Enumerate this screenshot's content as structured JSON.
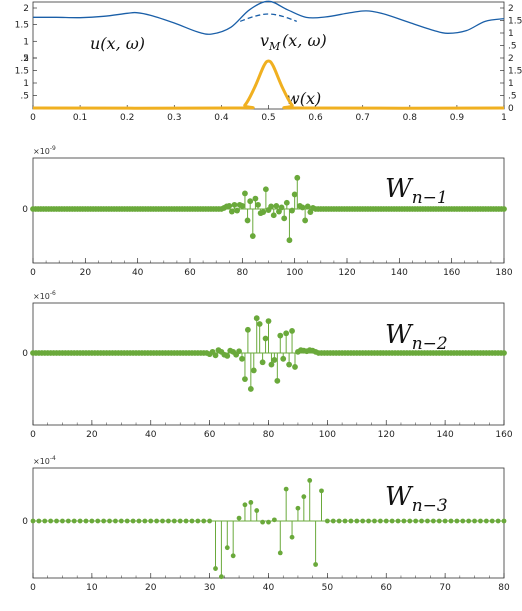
{
  "chart_data": [
    {
      "type": "line",
      "xlim": [
        0,
        1
      ],
      "ylim": [
        0,
        2
      ],
      "x_ticks": [
        "0",
        "0.1",
        "0.2",
        "0.3",
        "0.4",
        "0.5",
        "0.6",
        "0.7",
        "0.8",
        "0.9",
        "1"
      ],
      "left_y_ticks": [
        ".5",
        "1",
        "1.5",
        "2",
        ".5",
        "1",
        "1.5",
        "2"
      ],
      "right_y_ticks": [
        "0",
        ".5",
        "1",
        "1.5",
        "2",
        ".5",
        "1",
        "1.5",
        "2"
      ],
      "bottom_ticks": [
        "0",
        ".5"
      ],
      "series": [
        {
          "name": "u(x,ω)",
          "color": "#1a5fa8",
          "x": [
            0,
            0.05,
            0.1,
            0.15,
            0.2,
            0.22,
            0.25,
            0.3,
            0.35,
            0.38,
            0.42,
            0.46,
            0.5,
            0.54,
            0.58,
            0.62,
            0.67,
            0.7,
            0.72,
            0.75,
            0.8,
            0.85,
            0.88,
            0.92,
            0.96,
            1
          ],
          "y": [
            1.72,
            1.72,
            1.71,
            1.75,
            1.84,
            1.86,
            1.78,
            1.55,
            1.28,
            1.22,
            1.42,
            1.95,
            2.2,
            1.95,
            1.72,
            1.73,
            1.85,
            1.91,
            1.9,
            1.8,
            1.56,
            1.33,
            1.24,
            1.32,
            1.6,
            1.68
          ]
        },
        {
          "name": "v_M(x,ω)",
          "color": "#1a5fa8",
          "dashed": true,
          "x": [
            0.44,
            0.47,
            0.5,
            0.53,
            0.56
          ],
          "y": [
            1.6,
            1.75,
            1.82,
            1.75,
            1.6
          ]
        },
        {
          "name": "w(x)",
          "color": "#f0b020",
          "x": [
            0,
            0.43,
            0.45,
            0.47,
            0.49,
            0.5,
            0.51,
            0.53,
            0.55,
            0.57,
            1
          ],
          "y": [
            0,
            0,
            0.03,
            0.2,
            0.42,
            0.47,
            0.42,
            0.2,
            0.03,
            0,
            0
          ]
        }
      ],
      "labels": [
        "u(x, ω)",
        "v",
        "M",
        "(x, ω)",
        "w(x)"
      ]
    },
    {
      "type": "stem",
      "annotation": "W",
      "annotation_sub": "n−1",
      "exponent": "×10",
      "exponent_power": "-9",
      "y_ticks": [
        "0"
      ],
      "x_ticks": [
        "0",
        "20",
        "40",
        "60",
        "80",
        "100",
        "120",
        "140",
        "160",
        "180"
      ],
      "xlim": [
        0,
        180
      ],
      "ylim": [
        -1,
        1
      ],
      "color": "#6aa93b",
      "n": 181,
      "nonzero": {
        "x": [
          73,
          74,
          75,
          76,
          77,
          78,
          79,
          80,
          81,
          82,
          83,
          84,
          85,
          86,
          87,
          88,
          89,
          90,
          91,
          92,
          93,
          94,
          95,
          96,
          97,
          98,
          99,
          100,
          101,
          102,
          103,
          104,
          105,
          106,
          107
        ],
        "y": [
          0.02,
          0.05,
          0.06,
          -0.05,
          0.08,
          -0.03,
          0.08,
          0.06,
          0.3,
          -0.22,
          0.15,
          -0.52,
          0.2,
          0.08,
          -0.08,
          -0.06,
          0.38,
          -0.02,
          0.05,
          -0.12,
          0.06,
          -0.05,
          0.03,
          -0.18,
          0.12,
          -0.6,
          -0.03,
          0.28,
          0.6,
          0.06,
          0.03,
          -0.22,
          0.05,
          -0.06,
          0.02
        ]
      }
    },
    {
      "type": "stem",
      "annotation": "W",
      "annotation_sub": "n−2",
      "exponent": "×10",
      "exponent_power": "-6",
      "y_ticks": [
        "0"
      ],
      "x_ticks": [
        "0",
        "20",
        "40",
        "60",
        "80",
        "100",
        "120",
        "140",
        "160"
      ],
      "xlim": [
        0,
        160
      ],
      "ylim": [
        -1,
        1
      ],
      "color": "#6aa93b",
      "n": 161,
      "nonzero": {
        "x": [
          60,
          61,
          62,
          63,
          64,
          65,
          66,
          67,
          68,
          69,
          70,
          71,
          72,
          73,
          74,
          75,
          76,
          77,
          78,
          79,
          80,
          81,
          82,
          83,
          84,
          85,
          86,
          87,
          88,
          89,
          90,
          91,
          92,
          93,
          94,
          95,
          96
        ],
        "y": [
          -0.02,
          0.02,
          -0.04,
          0.05,
          0.02,
          -0.03,
          -0.05,
          0.04,
          0.02,
          -0.03,
          0.03,
          -0.1,
          -0.45,
          0.4,
          -0.62,
          -0.3,
          0.6,
          0.5,
          -0.16,
          0.25,
          0.55,
          -0.2,
          -0.12,
          -0.48,
          0.3,
          -0.1,
          0.34,
          -0.2,
          0.38,
          -0.24,
          0.02,
          0.05,
          0.04,
          0.03,
          0.05,
          0.04,
          0.02
        ]
      }
    },
    {
      "type": "stem",
      "annotation": "W",
      "annotation_sub": "n−3",
      "exponent": "×10",
      "exponent_power": "-4",
      "y_ticks": [
        "0"
      ],
      "x_ticks": [
        "0",
        "10",
        "20",
        "30",
        "40",
        "50",
        "60",
        "70",
        "80"
      ],
      "xlim": [
        0,
        80
      ],
      "ylim": [
        -1,
        1
      ],
      "color": "#6aa93b",
      "n": 81,
      "nonzero": {
        "x": [
          31,
          32,
          33,
          34,
          35,
          36,
          37,
          38,
          39,
          40,
          41,
          42,
          43,
          44,
          45,
          46,
          47,
          48,
          49
        ],
        "y": [
          -0.82,
          -0.96,
          -0.46,
          -0.6,
          0.05,
          0.28,
          0.32,
          0.18,
          -0.02,
          -0.02,
          0.02,
          -0.55,
          0.55,
          -0.28,
          0.22,
          0.42,
          0.7,
          -0.75,
          0.52
        ]
      }
    }
  ]
}
